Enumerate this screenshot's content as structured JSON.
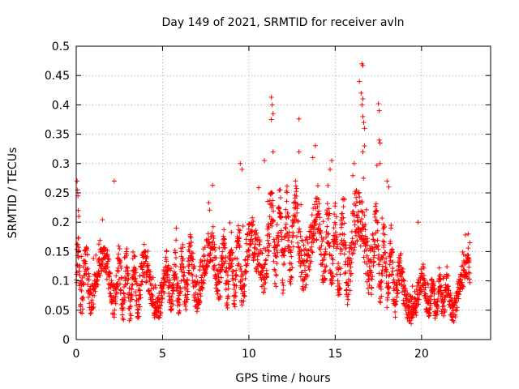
{
  "chart_data": {
    "type": "scatter",
    "title": "Day 149 of 2021, SRMTID for receiver avln",
    "xlabel": "GPS time / hours",
    "ylabel": "SRMTID / TECUs",
    "xlim": [
      0,
      24
    ],
    "ylim": [
      0,
      0.5
    ],
    "xticks": [
      0,
      5,
      10,
      15,
      20
    ],
    "xtick_labels": [
      "0",
      "5",
      "10",
      "15",
      "20"
    ],
    "yticks": [
      0,
      0.05,
      0.1,
      0.15,
      0.2,
      0.25,
      0.3,
      0.35,
      0.4,
      0.45,
      0.5
    ],
    "ytick_labels": [
      "0",
      "0.05",
      "0.1",
      "0.15",
      "0.2",
      "0.25",
      "0.3",
      "0.35",
      "0.4",
      "0.45",
      "0.5"
    ],
    "grid": true,
    "marker": "plus",
    "color": "#ff0000",
    "envelope": {
      "description_hours": [
        0,
        1,
        2,
        3,
        4,
        5,
        6,
        7,
        8,
        9,
        10,
        11,
        12,
        13,
        14,
        15,
        16,
        17,
        18,
        19,
        20,
        21,
        22,
        22.8
      ],
      "center": [
        0.11,
        0.1,
        0.1,
        0.09,
        0.1,
        0.09,
        0.1,
        0.12,
        0.12,
        0.12,
        0.13,
        0.17,
        0.17,
        0.18,
        0.16,
        0.15,
        0.15,
        0.17,
        0.12,
        0.08,
        0.08,
        0.07,
        0.07,
        0.1
      ],
      "spread": [
        0.05,
        0.04,
        0.045,
        0.045,
        0.045,
        0.04,
        0.045,
        0.05,
        0.045,
        0.05,
        0.055,
        0.06,
        0.065,
        0.065,
        0.06,
        0.06,
        0.07,
        0.07,
        0.05,
        0.04,
        0.035,
        0.03,
        0.03,
        0.04
      ]
    },
    "outliers": [
      {
        "x": 0.05,
        "y": 0.27
      },
      {
        "x": 0.08,
        "y": 0.255
      },
      {
        "x": 0.1,
        "y": 0.245
      },
      {
        "x": 0.12,
        "y": 0.22
      },
      {
        "x": 0.15,
        "y": 0.21
      },
      {
        "x": 2.2,
        "y": 0.27
      },
      {
        "x": 7.9,
        "y": 0.263
      },
      {
        "x": 9.5,
        "y": 0.3
      },
      {
        "x": 9.6,
        "y": 0.29
      },
      {
        "x": 10.9,
        "y": 0.305
      },
      {
        "x": 11.3,
        "y": 0.413
      },
      {
        "x": 11.35,
        "y": 0.4
      },
      {
        "x": 11.4,
        "y": 0.385
      },
      {
        "x": 11.3,
        "y": 0.375
      },
      {
        "x": 11.4,
        "y": 0.32
      },
      {
        "x": 12.9,
        "y": 0.376
      },
      {
        "x": 12.9,
        "y": 0.32
      },
      {
        "x": 13.7,
        "y": 0.31
      },
      {
        "x": 14.8,
        "y": 0.305
      },
      {
        "x": 14.7,
        "y": 0.29
      },
      {
        "x": 16.1,
        "y": 0.3
      },
      {
        "x": 16.4,
        "y": 0.44
      },
      {
        "x": 16.55,
        "y": 0.47
      },
      {
        "x": 16.6,
        "y": 0.467
      },
      {
        "x": 16.5,
        "y": 0.42
      },
      {
        "x": 16.6,
        "y": 0.41
      },
      {
        "x": 16.55,
        "y": 0.4
      },
      {
        "x": 16.6,
        "y": 0.38
      },
      {
        "x": 16.65,
        "y": 0.37
      },
      {
        "x": 16.7,
        "y": 0.36
      },
      {
        "x": 16.6,
        "y": 0.32
      },
      {
        "x": 16.7,
        "y": 0.33
      },
      {
        "x": 17.5,
        "y": 0.402
      },
      {
        "x": 17.55,
        "y": 0.39
      },
      {
        "x": 17.55,
        "y": 0.34
      },
      {
        "x": 17.6,
        "y": 0.335
      },
      {
        "x": 17.6,
        "y": 0.3
      },
      {
        "x": 18.0,
        "y": 0.27
      },
      {
        "x": 18.1,
        "y": 0.26
      },
      {
        "x": 19.8,
        "y": 0.2
      },
      {
        "x": 22.7,
        "y": 0.18
      },
      {
        "x": 22.8,
        "y": 0.165
      }
    ],
    "point_count": 2300
  }
}
